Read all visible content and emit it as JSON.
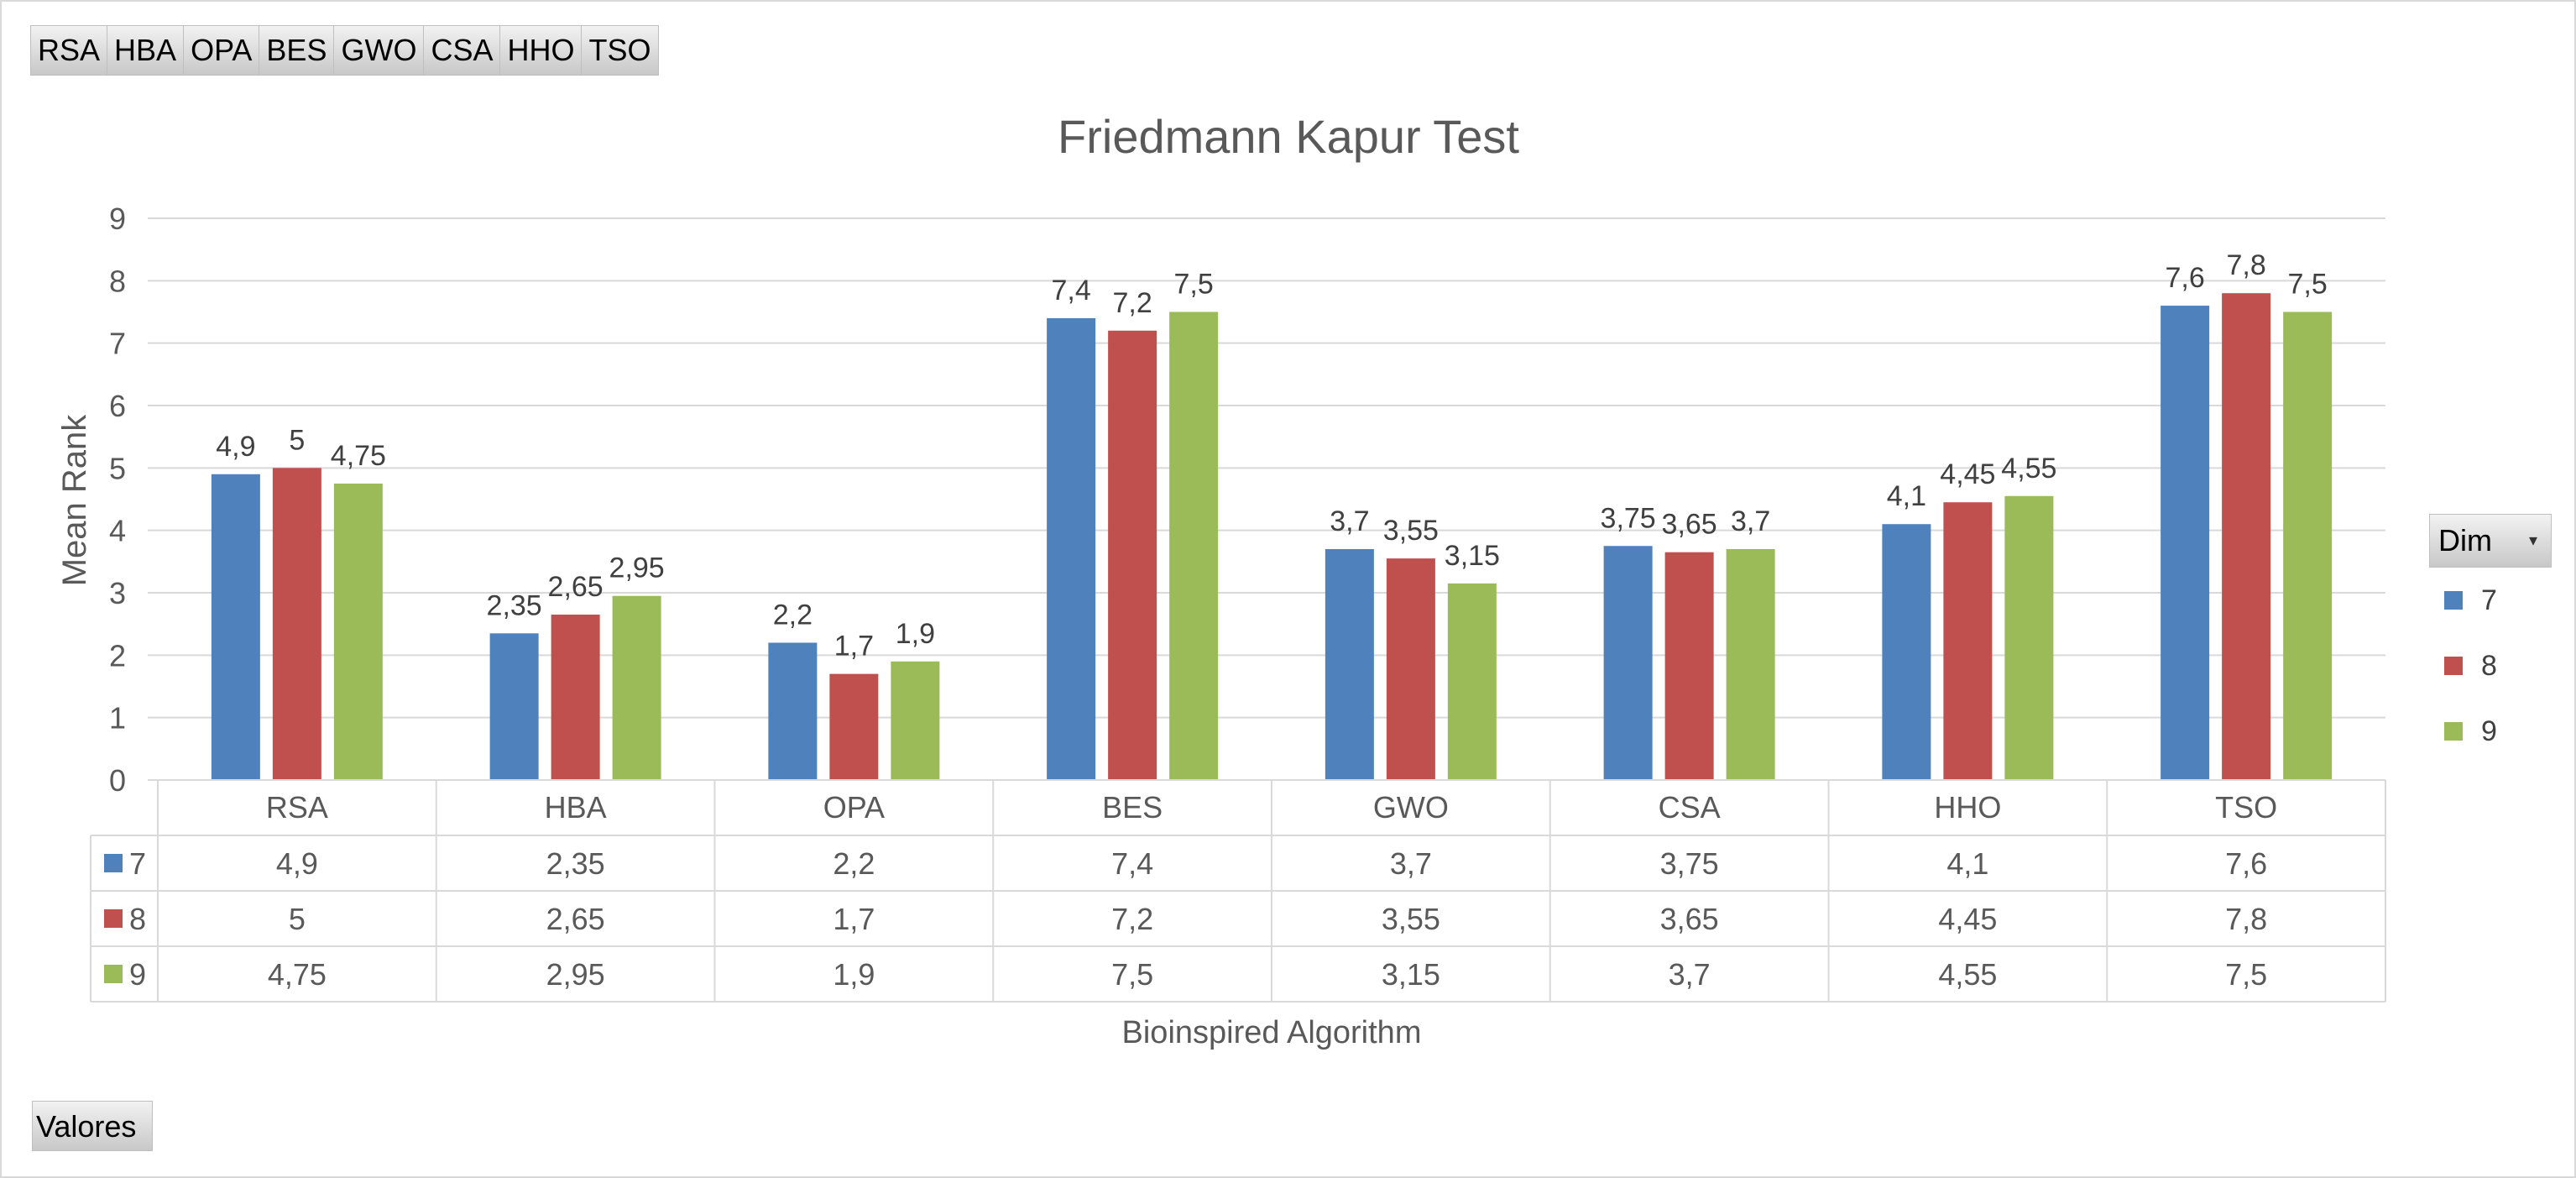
{
  "pivot": {
    "category_buttons": [
      "RSA",
      "HBA",
      "OPA",
      "BES",
      "GWO",
      "CSA",
      "HHO",
      "TSO"
    ],
    "values_button": "Valores",
    "legend_field": "Dim"
  },
  "colors": {
    "7": "#4f81bd",
    "8": "#c0504d",
    "9": "#9bbb59",
    "grid": "#d9d9d9"
  },
  "chart_data": {
    "type": "bar",
    "title": "Friedmann Kapur Test",
    "xlabel": "Bioinspired Algorithm",
    "ylabel": "Mean Rank",
    "ylim": [
      0,
      9
    ],
    "yticks": [
      "0",
      "1",
      "2",
      "3",
      "4",
      "5",
      "6",
      "7",
      "8",
      "9"
    ],
    "grid": true,
    "legend_position": "right",
    "categories": [
      "RSA",
      "HBA",
      "OPA",
      "BES",
      "GWO",
      "CSA",
      "HHO",
      "TSO"
    ],
    "series": [
      {
        "name": "7",
        "values": [
          4.9,
          2.35,
          2.2,
          7.4,
          3.7,
          3.75,
          4.1,
          7.6
        ],
        "labels": [
          "4,9",
          "2,35",
          "2,2",
          "7,4",
          "3,7",
          "3,75",
          "4,1",
          "7,6"
        ]
      },
      {
        "name": "8",
        "values": [
          5,
          2.65,
          1.7,
          7.2,
          3.55,
          3.65,
          4.45,
          7.8
        ],
        "labels": [
          "5",
          "2,65",
          "1,7",
          "7,2",
          "3,55",
          "3,65",
          "4,45",
          "7,8"
        ]
      },
      {
        "name": "9",
        "values": [
          4.75,
          2.95,
          1.9,
          7.5,
          3.15,
          3.7,
          4.55,
          7.5
        ],
        "labels": [
          "4,75",
          "2,95",
          "1,9",
          "7,5",
          "3,15",
          "3,7",
          "4,55",
          "7,5"
        ]
      }
    ],
    "data_table": true
  }
}
